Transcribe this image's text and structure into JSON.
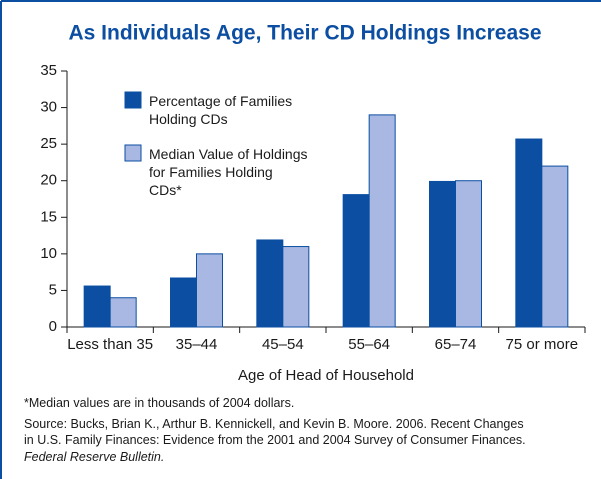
{
  "chart_data": {
    "type": "bar",
    "title": "As Individuals Age, Their CD Holdings Increase",
    "xlabel": "Age of Head of Household",
    "categories": [
      "Less than 35",
      "35–44",
      "45–54",
      "55–64",
      "65–74",
      "75 or more"
    ],
    "series": [
      {
        "name": "Percentage of Families Holding CDs",
        "color": "#0b4ea2",
        "values": [
          5.6,
          6.7,
          11.9,
          18.1,
          19.9,
          25.7
        ]
      },
      {
        "name": "Median Value of Holdings for Families Holding CDs*",
        "color": "#a9b8e2",
        "values": [
          4,
          10,
          11,
          29,
          20,
          22
        ]
      }
    ],
    "ylim": [
      0,
      35
    ],
    "yticks": [
      0,
      5,
      10,
      15,
      20,
      25,
      30,
      35
    ],
    "footnote": "*Median values are in thousands of 2004 dollars.",
    "source": [
      "Source: Bucks, Brian K., Arthur B. Kennickell, and Kevin B. Moore. 2006. Recent Changes",
      "in U.S. Family Finances: Evidence from the 2001 and 2004 Survey of Consumer Finances.",
      "Federal Reserve Bulletin."
    ]
  }
}
